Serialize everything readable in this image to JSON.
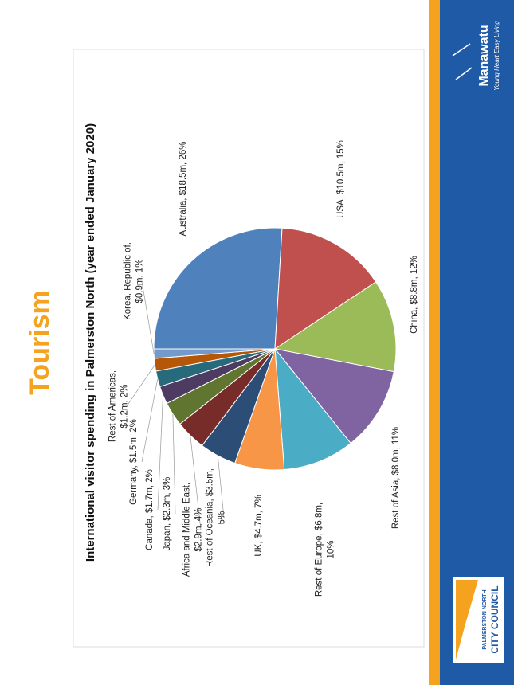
{
  "slide_title": "Tourism",
  "footer": {
    "council_line1": "PALMERSTON NORTH",
    "council_line2": "CITY COUNCIL",
    "region": "Manawatu",
    "tagline": "Young Heart Easy Living"
  },
  "chart_data": {
    "type": "pie",
    "title": "International visitor spending in Palmerston North (year ended January 2020)",
    "categories": [
      "Australia",
      "USA",
      "China",
      "Rest of Asia",
      "Rest of Europe",
      "UK",
      "Rest of Oceania",
      "Africa and Middle East",
      "Japan",
      "Canada",
      "Germany",
      "Rest of Americas",
      "Korea, Republic of"
    ],
    "values": [
      18.5,
      10.5,
      8.8,
      8.0,
      6.8,
      4.7,
      3.5,
      2.9,
      2.3,
      1.7,
      1.5,
      1.2,
      0.9
    ],
    "value_labels": [
      "Australia, $18.5m, 26%",
      "USA, $10.5m, 15%",
      "China, $8.8m, 12%",
      "Rest of Asia, $8.0m, 11%",
      "Rest of Europe, $6.8m,\n10%",
      "UK, $4.7m, 7%",
      "Rest of Oceania, $3.5m,\n5%",
      "Africa and Middle East,\n$2.9m, 4%",
      "Japan, $2.3m, 3%",
      "Canada, $1.7m, 2%",
      "Germany, $1.5m, 2%",
      "Rest of Americas,\n$1.2m, 2%",
      "Korea, Republic of,\n$0.9m, 1%"
    ],
    "colors": [
      "#4f81bd",
      "#c0504d",
      "#9bbb59",
      "#8064a2",
      "#4bacc6",
      "#f79646",
      "#2c4d75",
      "#772c2a",
      "#5f7530",
      "#4d3b62",
      "#276a7c",
      "#b65708",
      "#729aca"
    ]
  }
}
